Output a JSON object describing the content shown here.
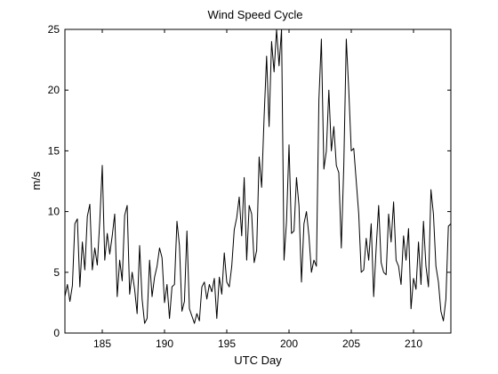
{
  "chart_data": {
    "type": "line",
    "title": "Wind Speed Cycle",
    "xlabel": "UTC Day",
    "ylabel": "m/s",
    "xlim": [
      182,
      213
    ],
    "ylim": [
      0,
      25
    ],
    "xticks": [
      185,
      190,
      195,
      200,
      205,
      210
    ],
    "yticks": [
      0,
      5,
      10,
      15,
      20,
      25
    ],
    "grid": false,
    "line_color": "#000000",
    "series": [
      {
        "x": [
          182.0,
          182.2,
          182.4,
          182.6,
          182.8,
          183.0,
          183.2,
          183.4,
          183.6,
          183.8,
          184.0,
          184.2,
          184.4,
          184.6,
          184.8,
          185.0,
          185.2,
          185.4,
          185.6,
          185.8,
          186.0,
          186.2,
          186.4,
          186.6,
          186.8,
          187.0,
          187.2,
          187.4,
          187.6,
          187.8,
          188.0,
          188.2,
          188.4,
          188.6,
          188.8,
          189.0,
          189.2,
          189.4,
          189.6,
          189.8,
          190.0,
          190.2,
          190.4,
          190.6,
          190.8,
          191.0,
          191.2,
          191.4,
          191.6,
          191.8,
          192.0,
          192.2,
          192.4,
          192.6,
          192.8,
          193.0,
          193.2,
          193.4,
          193.6,
          193.8,
          194.0,
          194.2,
          194.4,
          194.6,
          194.8,
          195.0,
          195.2,
          195.4,
          195.6,
          195.8,
          196.0,
          196.2,
          196.4,
          196.6,
          196.8,
          197.0,
          197.2,
          197.4,
          197.6,
          197.8,
          198.0,
          198.2,
          198.4,
          198.6,
          198.8,
          199.0,
          199.2,
          199.4,
          199.6,
          199.8,
          200.0,
          200.2,
          200.4,
          200.6,
          200.8,
          201.0,
          201.2,
          201.4,
          201.6,
          201.8,
          202.0,
          202.2,
          202.4,
          202.6,
          202.8,
          203.0,
          203.2,
          203.4,
          203.6,
          203.8,
          204.0,
          204.2,
          204.4,
          204.6,
          204.8,
          205.0,
          205.2,
          205.4,
          205.6,
          205.8,
          206.0,
          206.2,
          206.4,
          206.6,
          206.8,
          207.0,
          207.2,
          207.4,
          207.6,
          207.8,
          208.0,
          208.2,
          208.4,
          208.6,
          208.8,
          209.0,
          209.2,
          209.4,
          209.6,
          209.8,
          210.0,
          210.2,
          210.4,
          210.6,
          210.8,
          211.0,
          211.2,
          211.4,
          211.6,
          211.8,
          212.0,
          212.2,
          212.4,
          212.6,
          212.8,
          213.0
        ],
        "y": [
          3.0,
          4.0,
          2.6,
          3.9,
          9.0,
          9.4,
          3.8,
          7.5,
          5.2,
          9.6,
          10.6,
          5.2,
          7.0,
          5.6,
          9.2,
          13.8,
          6.0,
          8.2,
          6.5,
          8.0,
          9.8,
          3.0,
          6.0,
          4.3,
          9.7,
          10.5,
          3.2,
          5.0,
          3.6,
          1.6,
          7.2,
          2.8,
          0.8,
          1.2,
          6.0,
          3.0,
          4.6,
          5.5,
          7.0,
          6.2,
          2.5,
          4.0,
          1.2,
          3.8,
          4.0,
          9.2,
          7.2,
          1.8,
          2.6,
          8.4,
          2.0,
          1.4,
          0.8,
          1.6,
          1.0,
          3.8,
          4.2,
          2.8,
          4.0,
          3.4,
          4.5,
          1.2,
          4.6,
          3.2,
          6.6,
          4.2,
          3.8,
          5.5,
          8.5,
          9.5,
          11.2,
          8.0,
          12.8,
          6.0,
          10.5,
          9.8,
          5.8,
          6.8,
          14.5,
          12.0,
          17.8,
          22.8,
          17.0,
          24.0,
          21.5,
          25.0,
          22.0,
          25.0,
          6.0,
          9.2,
          15.5,
          8.2,
          8.4,
          12.8,
          10.5,
          4.2,
          9.0,
          10.0,
          8.0,
          5.0,
          6.0,
          5.5,
          19.2,
          24.2,
          13.5,
          15.0,
          20.0,
          15.0,
          17.0,
          13.8,
          13.2,
          7.0,
          13.8,
          24.2,
          20.0,
          15.0,
          15.2,
          12.5,
          9.8,
          5.0,
          5.2,
          7.8,
          6.0,
          9.0,
          3.0,
          7.0,
          10.5,
          5.8,
          5.0,
          4.8,
          9.8,
          7.5,
          10.8,
          6.0,
          5.5,
          4.0,
          8.0,
          6.0,
          8.6,
          2.0,
          4.5,
          3.6,
          7.5,
          4.0,
          9.2,
          5.5,
          3.8,
          11.8,
          9.8,
          5.5,
          4.2,
          1.8,
          1.0,
          2.8,
          8.8,
          9.0
        ]
      }
    ]
  }
}
